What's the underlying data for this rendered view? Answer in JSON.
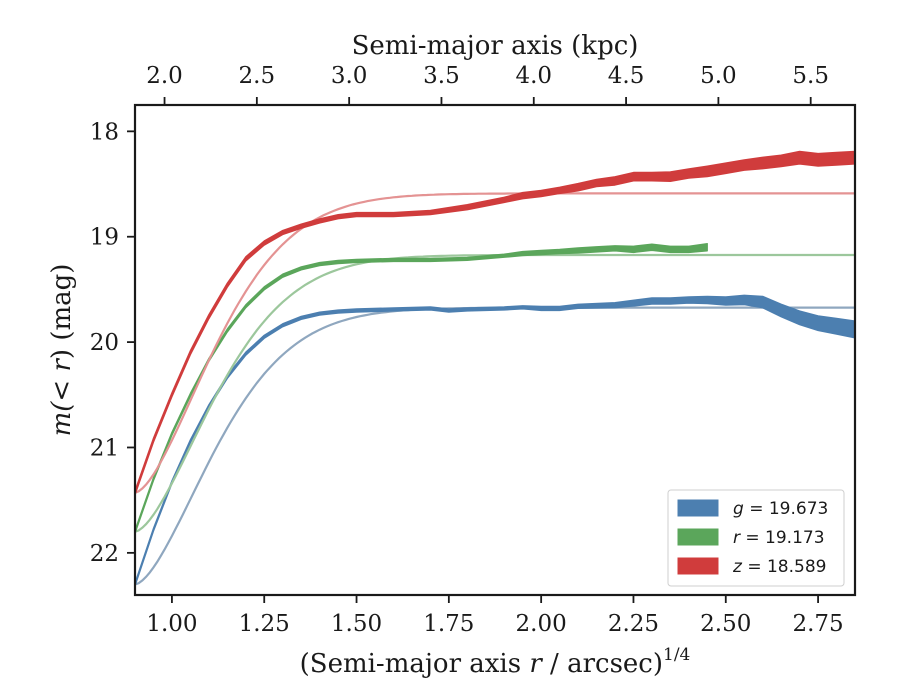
{
  "chart_data": {
    "type": "area",
    "title": "",
    "xlabel": "(Semi-major axis r / arcsec)^{1/4}",
    "xlabel_parts": {
      "prefix": "(Semi-major axis ",
      "var": "r",
      "suffix": " / arcsec)",
      "exponent": "1/4"
    },
    "x2label": "Semi-major axis (kpc)",
    "ylabel": "m(< r) (mag)",
    "ylabel_parts": {
      "prefix": "m(",
      "lt": "<",
      "var": "r",
      "suffix": ") (mag)"
    },
    "xlim": [
      0.9,
      2.85
    ],
    "ylim": [
      22.4,
      17.75
    ],
    "y_inverted": true,
    "x_ticks": [
      "1.00",
      "1.25",
      "1.50",
      "1.75",
      "2.00",
      "2.25",
      "2.50",
      "2.75"
    ],
    "x_tick_values": [
      1.0,
      1.25,
      1.5,
      1.75,
      2.0,
      2.25,
      2.5,
      2.75
    ],
    "x2_ticks": [
      "2.0",
      "2.5",
      "3.0",
      "3.5",
      "4.0",
      "4.5",
      "5.0",
      "5.5"
    ],
    "x2_tick_positions": [
      0.98,
      1.23,
      1.48,
      1.73,
      1.98,
      2.23,
      2.48,
      2.73
    ],
    "y_ticks": [
      "18",
      "19",
      "20",
      "21",
      "22"
    ],
    "y_tick_values": [
      18,
      19,
      20,
      21,
      22
    ],
    "grid": false,
    "legend_position": "bottom-right",
    "series": [
      {
        "name": "g = 19.673",
        "legend_var": "g",
        "legend_value": "19.673",
        "color": "#4c7fb0",
        "model_color": "#8fa7bf",
        "asymptote": 19.673,
        "x": [
          0.9,
          0.95,
          1.0,
          1.05,
          1.1,
          1.15,
          1.2,
          1.25,
          1.3,
          1.35,
          1.4,
          1.45,
          1.5,
          1.6,
          1.7,
          1.75,
          1.8,
          1.9,
          1.95,
          2.0,
          2.05,
          2.1,
          2.2,
          2.3,
          2.35,
          2.4,
          2.45,
          2.5,
          2.55,
          2.6,
          2.65,
          2.7,
          2.75,
          2.8,
          2.85
        ],
        "y": [
          22.3,
          21.78,
          21.33,
          20.94,
          20.61,
          20.33,
          20.11,
          19.95,
          19.84,
          19.77,
          19.73,
          19.71,
          19.7,
          19.69,
          19.68,
          19.7,
          19.69,
          19.68,
          19.67,
          19.68,
          19.68,
          19.66,
          19.65,
          19.61,
          19.61,
          19.6,
          19.6,
          19.61,
          19.6,
          19.62,
          19.7,
          19.77,
          19.82,
          19.85,
          19.88
        ],
        "width": [
          0.03,
          0.03,
          0.03,
          0.03,
          0.03,
          0.03,
          0.03,
          0.03,
          0.03,
          0.03,
          0.03,
          0.03,
          0.03,
          0.03,
          0.03,
          0.03,
          0.03,
          0.03,
          0.03,
          0.04,
          0.04,
          0.04,
          0.05,
          0.06,
          0.06,
          0.06,
          0.07,
          0.08,
          0.09,
          0.11,
          0.12,
          0.13,
          0.14,
          0.15,
          0.16
        ]
      },
      {
        "name": "r = 19.173",
        "legend_var": "r",
        "legend_value": "19.173",
        "color": "#5ba65b",
        "model_color": "#9cc79c",
        "asymptote": 19.173,
        "x": [
          0.9,
          0.95,
          1.0,
          1.05,
          1.1,
          1.15,
          1.2,
          1.25,
          1.3,
          1.35,
          1.4,
          1.45,
          1.5,
          1.6,
          1.7,
          1.8,
          1.9,
          1.95,
          2.0,
          2.05,
          2.1,
          2.15,
          2.2,
          2.25,
          2.3,
          2.35,
          2.4,
          2.45
        ],
        "y": [
          21.8,
          21.3,
          20.87,
          20.5,
          20.17,
          19.89,
          19.66,
          19.49,
          19.37,
          19.3,
          19.26,
          19.24,
          19.23,
          19.22,
          19.22,
          19.21,
          19.18,
          19.16,
          19.15,
          19.14,
          19.13,
          19.12,
          19.11,
          19.12,
          19.1,
          19.12,
          19.12,
          19.1
        ],
        "width": [
          0.03,
          0.03,
          0.03,
          0.03,
          0.03,
          0.03,
          0.03,
          0.03,
          0.03,
          0.03,
          0.03,
          0.03,
          0.03,
          0.03,
          0.03,
          0.03,
          0.03,
          0.04,
          0.04,
          0.04,
          0.05,
          0.05,
          0.05,
          0.06,
          0.06,
          0.06,
          0.06,
          0.07
        ]
      },
      {
        "name": "z = 18.589",
        "legend_var": "z",
        "legend_value": "18.589",
        "color": "#d03c3c",
        "model_color": "#e49393",
        "asymptote": 18.589,
        "x": [
          0.9,
          0.95,
          1.0,
          1.05,
          1.1,
          1.15,
          1.2,
          1.25,
          1.3,
          1.35,
          1.4,
          1.45,
          1.5,
          1.6,
          1.7,
          1.8,
          1.9,
          1.95,
          2.0,
          2.05,
          2.1,
          2.15,
          2.2,
          2.25,
          2.3,
          2.35,
          2.4,
          2.45,
          2.5,
          2.55,
          2.6,
          2.65,
          2.7,
          2.75,
          2.8,
          2.85
        ],
        "y": [
          21.43,
          20.93,
          20.5,
          20.1,
          19.76,
          19.46,
          19.21,
          19.06,
          18.96,
          18.9,
          18.85,
          18.81,
          18.79,
          18.79,
          18.77,
          18.72,
          18.65,
          18.61,
          18.59,
          18.56,
          18.53,
          18.49,
          18.47,
          18.43,
          18.43,
          18.43,
          18.4,
          18.38,
          18.35,
          18.32,
          18.3,
          18.28,
          18.25,
          18.27,
          18.26,
          18.25
        ],
        "width": [
          0.04,
          0.04,
          0.04,
          0.04,
          0.04,
          0.04,
          0.04,
          0.04,
          0.04,
          0.04,
          0.04,
          0.04,
          0.04,
          0.04,
          0.04,
          0.05,
          0.05,
          0.06,
          0.06,
          0.06,
          0.07,
          0.07,
          0.08,
          0.08,
          0.08,
          0.09,
          0.09,
          0.1,
          0.1,
          0.1,
          0.11,
          0.11,
          0.12,
          0.12,
          0.12,
          0.12
        ]
      }
    ]
  }
}
